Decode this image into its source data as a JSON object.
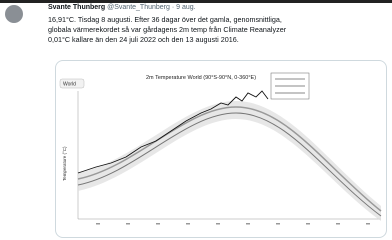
{
  "tweet": {
    "name": "Svante Thunberg",
    "handle": "@Svante_Thunberg",
    "date": "· 9 aug.",
    "lines": [
      "16,91°C. Tisdag 8 augusti. Efter 36 dagar över det gamla, genomsnittliga,",
      "globala värmerekordet så var gårdagens 2m temp från Climate Reanalyzer",
      "0,01°C kallare än den 24 juli 2022 och den 13 augusti 2016."
    ]
  },
  "image": {
    "title": "2m Temperature World (90°S-90°N, 0-360°E)",
    "region": "World",
    "y_label": "Temperature (°C)"
  }
}
